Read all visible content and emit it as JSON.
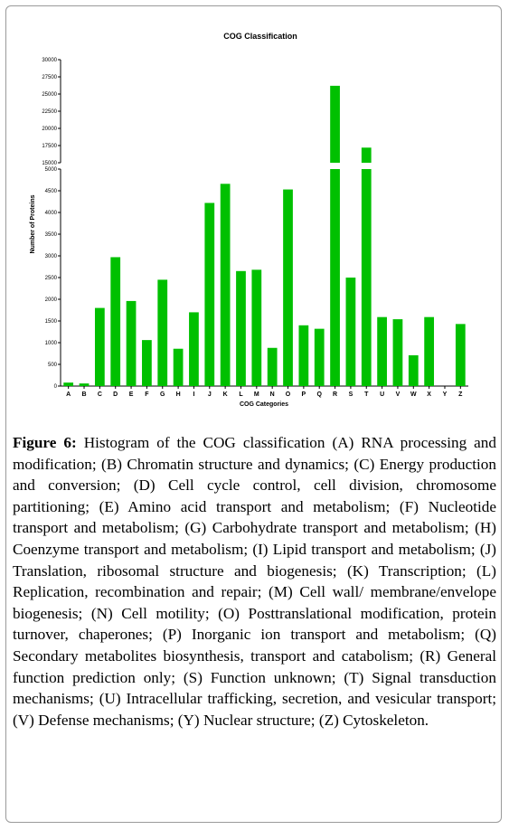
{
  "chart_data": {
    "type": "bar",
    "title": "COG Classification",
    "xlabel": "COG Categories",
    "ylabel": "Number of Proteins",
    "bar_color": "#00c000",
    "axis_break": true,
    "ylim_lower": [
      0,
      5000
    ],
    "ylim_upper": [
      15000,
      30000
    ],
    "yticks_lower": [
      "0",
      "500",
      "1000",
      "1500",
      "2000",
      "2500",
      "3000",
      "3500",
      "4000",
      "4500",
      "5000"
    ],
    "yticks_upper": [
      "15000",
      "17500",
      "20000",
      "22500",
      "25000",
      "27500",
      "30000"
    ],
    "categories": [
      "A",
      "B",
      "C",
      "D",
      "E",
      "F",
      "G",
      "H",
      "I",
      "J",
      "K",
      "L",
      "M",
      "N",
      "O",
      "P",
      "Q",
      "R",
      "S",
      "T",
      "U",
      "V",
      "W",
      "X",
      "Y",
      "Z"
    ],
    "values": [
      80,
      60,
      1800,
      2970,
      1960,
      1060,
      2450,
      860,
      1700,
      4220,
      4660,
      2650,
      2680,
      880,
      4530,
      1400,
      1320,
      26200,
      2500,
      17200,
      1590,
      1540,
      710,
      1590,
      0,
      1430
    ]
  },
  "caption": {
    "label": "Figure 6:",
    "text": "Histogram of the COG classification (A) RNA processing and modification; (B) Chromatin structure and dynamics; (C) Energy production and conversion; (D) Cell cycle control, cell division, chromosome partitioning; (E) Amino acid transport and metabolism; (F) Nucleotide transport and metabolism; (G) Carbohydrate transport and metabolism; (H) Coenzyme transport and metabolism; (I) Lipid transport and metabolism; (J) Translation, ribosomal structure and biogenesis; (K) Transcription; (L) Replication, recombination and repair; (M) Cell wall/ membrane/envelope biogenesis; (N) Cell motility; (O) Posttranslational modification, protein turnover, chaperones; (P) Inorganic ion transport and metabolism; (Q) Secondary metabolites biosynthesis, transport and catabolism; (R) General function prediction only; (S) Function unknown; (T) Signal transduction mechanisms; (U) Intracellular trafficking, secretion, and vesicular transport; (V) Defense mechanisms; (Y) Nuclear structure; (Z) Cytoskeleton."
  }
}
